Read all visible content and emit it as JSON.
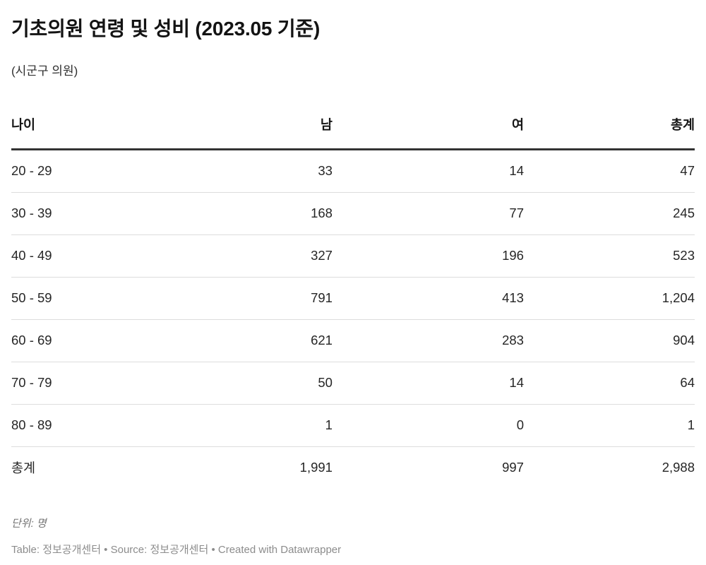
{
  "header": {
    "title": "기초의원 연령 및 성비 (2023.05 기준)",
    "subtitle": "(시군구 의원)"
  },
  "table": {
    "columns": [
      "나이",
      "남",
      "여",
      "총계"
    ],
    "rows": [
      {
        "age": "20 - 29",
        "male": "33",
        "female": "14",
        "total": "47"
      },
      {
        "age": "30 - 39",
        "male": "168",
        "female": "77",
        "total": "245"
      },
      {
        "age": "40 - 49",
        "male": "327",
        "female": "196",
        "total": "523"
      },
      {
        "age": "50 - 59",
        "male": "791",
        "female": "413",
        "total": "1,204"
      },
      {
        "age": "60 - 69",
        "male": "621",
        "female": "283",
        "total": "904"
      },
      {
        "age": "70 - 79",
        "male": "50",
        "female": "14",
        "total": "64"
      },
      {
        "age": "80 - 89",
        "male": "1",
        "female": "0",
        "total": "1"
      },
      {
        "age": "총계",
        "male": "1,991",
        "female": "997",
        "total": "2,988"
      }
    ]
  },
  "footer": {
    "unit_note": "단위: 명",
    "attribution": {
      "table_label": "Table: ",
      "table_source": "정보공개센터",
      "sep1": " • Source: ",
      "source_name": "정보공개센터",
      "sep2": " • Created with ",
      "creator": "Datawrapper"
    }
  },
  "colors": {
    "text_primary": "#131313",
    "text_cell": "#262626",
    "header_border": "#333333",
    "row_separator": "#dddddd",
    "note_gray": "#757575",
    "attribution_gray": "#8c8c8c",
    "background": "#ffffff"
  },
  "chart_data": {
    "type": "table",
    "title": "기초의원 연령 및 성비 (2023.05 기준)",
    "subtitle": "(시군구 의원)",
    "columns": [
      "나이",
      "남",
      "여",
      "총계"
    ],
    "categories": [
      "20 - 29",
      "30 - 39",
      "40 - 49",
      "50 - 59",
      "60 - 69",
      "70 - 79",
      "80 - 89",
      "총계"
    ],
    "series": [
      {
        "name": "남",
        "values": [
          33,
          168,
          327,
          791,
          621,
          50,
          1,
          1991
        ]
      },
      {
        "name": "여",
        "values": [
          14,
          77,
          196,
          413,
          283,
          14,
          0,
          997
        ]
      },
      {
        "name": "총계",
        "values": [
          47,
          245,
          523,
          1204,
          904,
          64,
          1,
          2988
        ]
      }
    ],
    "unit": "명",
    "layout_hints": {
      "numeric_columns_right_aligned": true,
      "thick_border_under_header": true,
      "thin_row_separators": true,
      "last_row_is_total": true
    }
  }
}
